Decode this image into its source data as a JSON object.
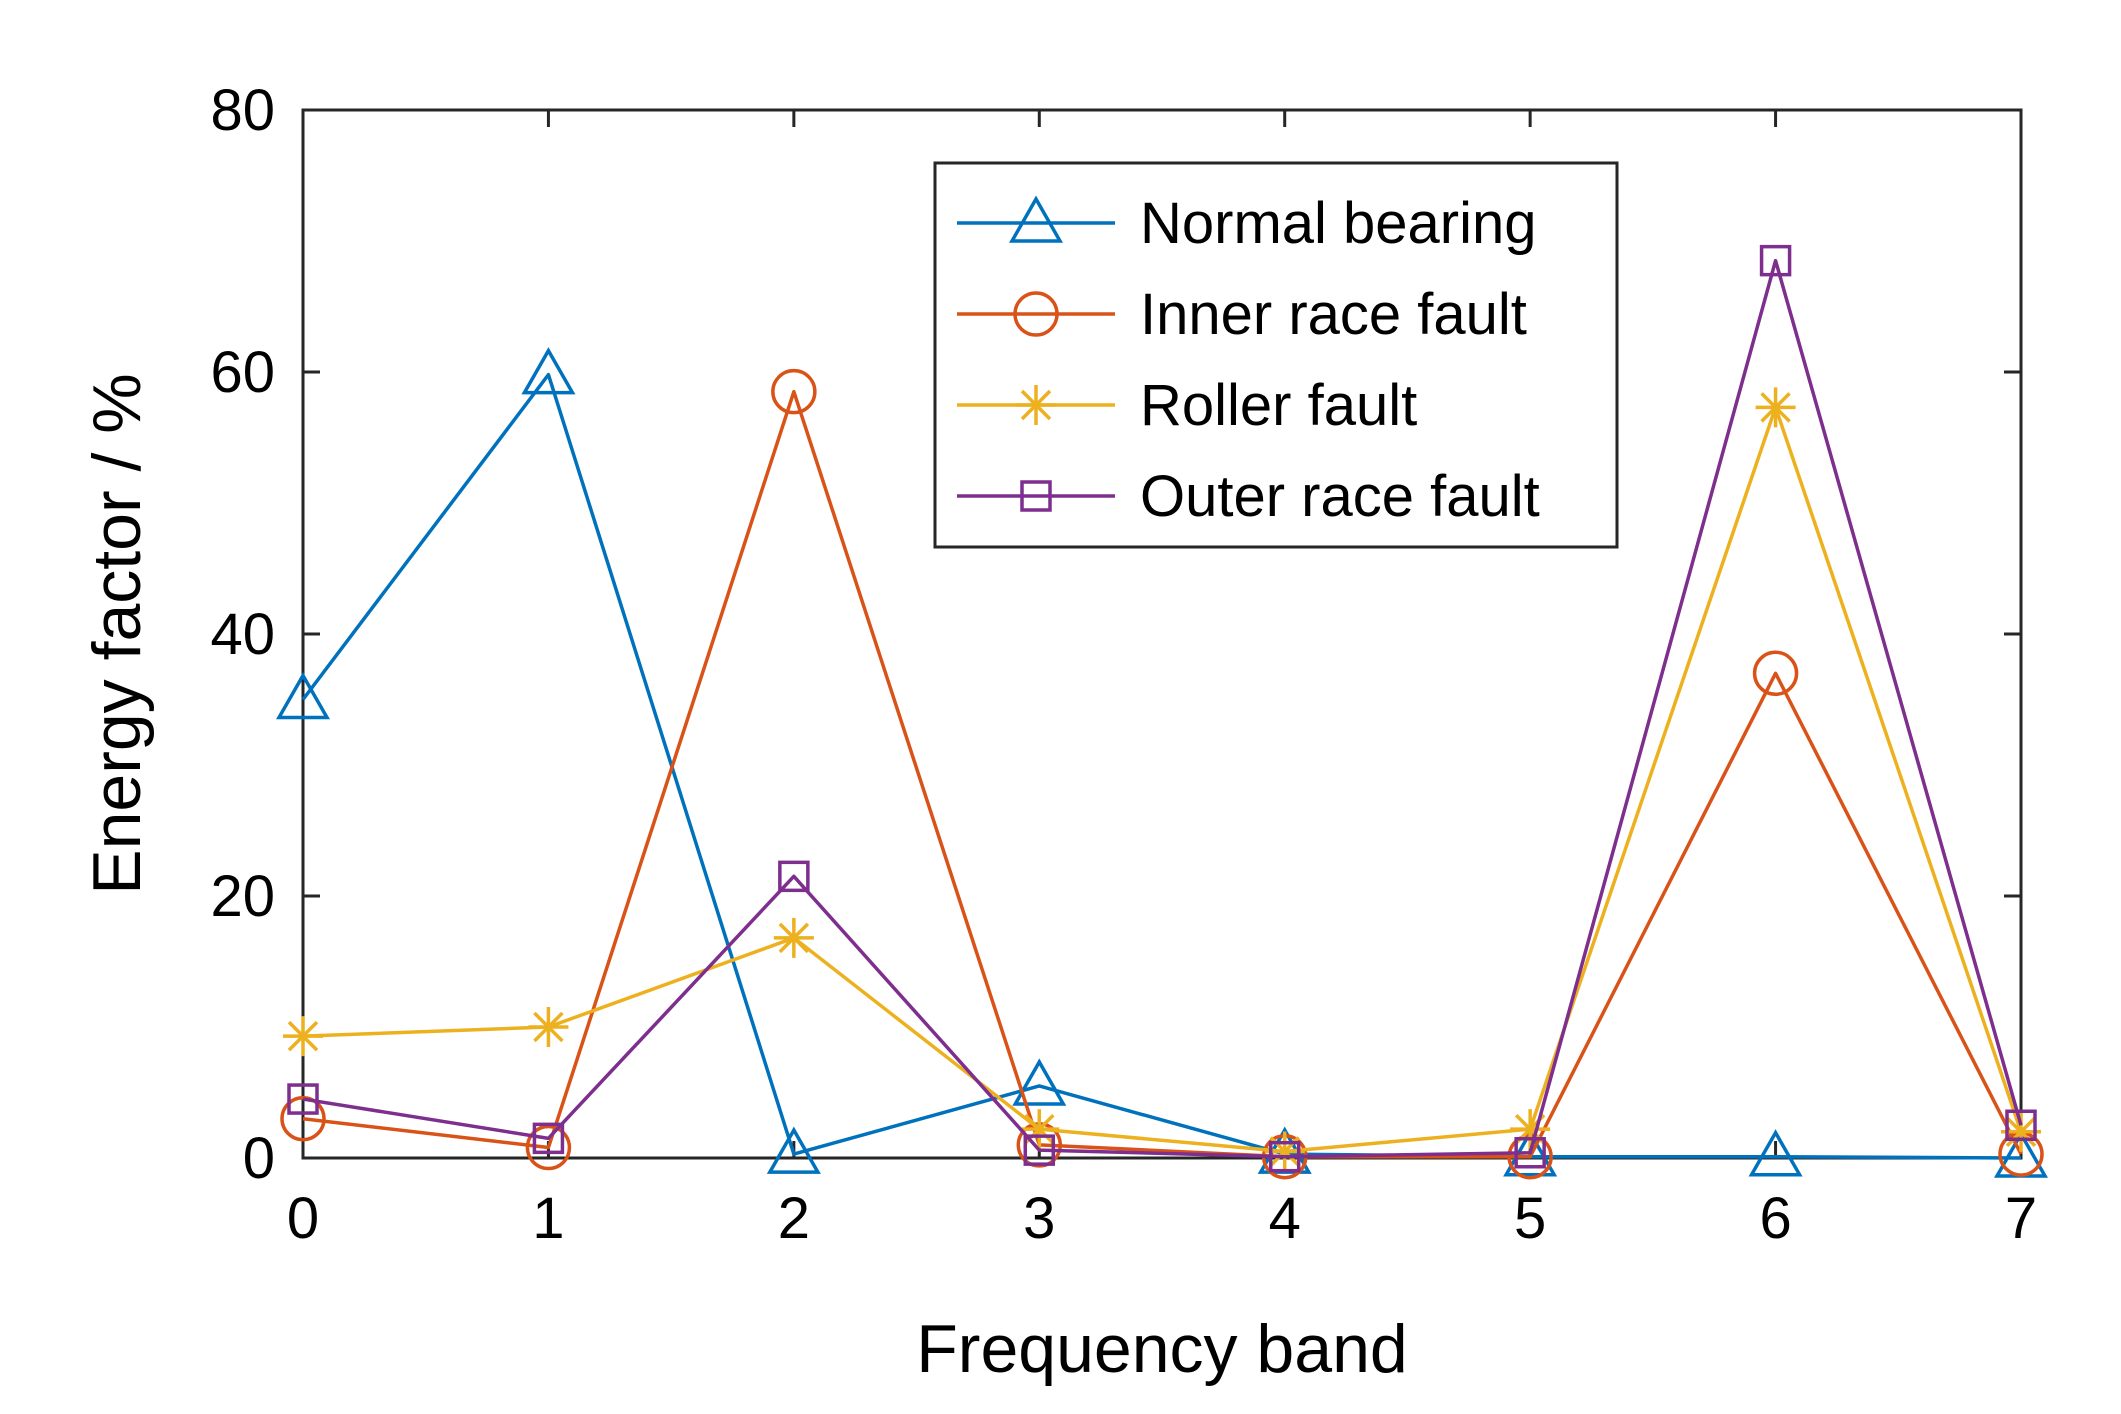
{
  "chart_data": {
    "type": "line",
    "title": "",
    "xlabel": "Frequency band",
    "ylabel": "Energy factor / %",
    "x": [
      0,
      1,
      2,
      3,
      4,
      5,
      6,
      7
    ],
    "xlim": [
      0,
      7
    ],
    "ylim": [
      0,
      80
    ],
    "xticks": [
      0,
      1,
      2,
      3,
      4,
      5,
      6,
      7
    ],
    "yticks": [
      0,
      20,
      40,
      60,
      80
    ],
    "grid": false,
    "legend_position": "top-right",
    "series": [
      {
        "name": "Normal bearing",
        "color": "#0072BD",
        "marker": "triangle",
        "values": [
          35.0,
          59.8,
          0.3,
          5.5,
          0.3,
          0.1,
          0.1,
          0.0
        ]
      },
      {
        "name": "Inner race fault",
        "color": "#D95319",
        "marker": "circle",
        "values": [
          3.0,
          0.8,
          58.5,
          1.0,
          0.1,
          0.1,
          37.0,
          0.3
        ]
      },
      {
        "name": "Roller fault",
        "color": "#EDB120",
        "marker": "asterisk",
        "values": [
          9.3,
          10.0,
          16.8,
          2.2,
          0.5,
          2.2,
          57.3,
          2.0
        ]
      },
      {
        "name": "Outer race fault",
        "color": "#7E2F8E",
        "marker": "square",
        "values": [
          4.5,
          1.5,
          21.5,
          0.6,
          0.1,
          0.4,
          68.5,
          2.5
        ]
      }
    ]
  }
}
